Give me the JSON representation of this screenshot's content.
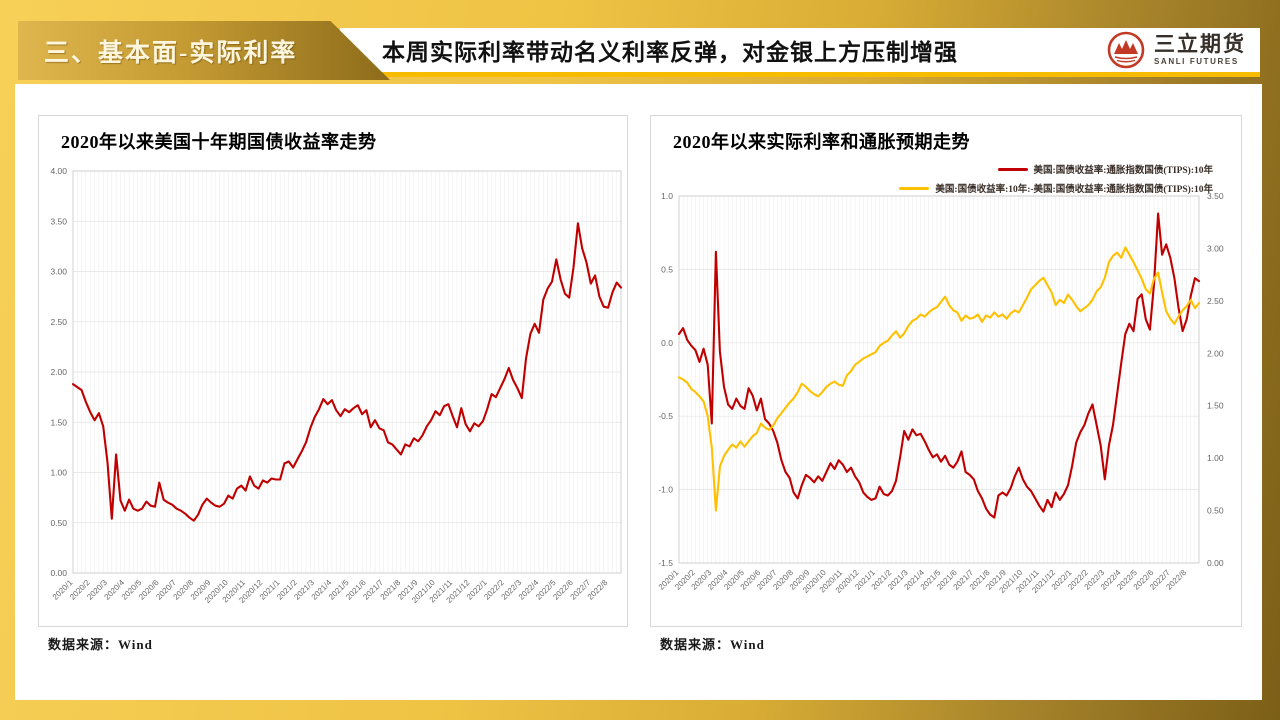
{
  "header": {
    "section_label": "三、基本面-实际利率",
    "headline": "本周实际利率带动名义利率反弹，对金银上方压制增强",
    "logo": {
      "name_cn": "三立期货",
      "name_en": "SANLI FUTURES",
      "brand_color": "#c23a26"
    }
  },
  "colors": {
    "accent_gold": "#f7bb00",
    "line_red": "#c00000",
    "line_gold": "#ffc000",
    "grid": "#ebebeb",
    "plot_border": "#c9c9c9",
    "tick_text": "#666666"
  },
  "chart_data": [
    {
      "type": "line",
      "title": "2020年以来美国十年期国债收益率走势",
      "source": "数据来源：Wind",
      "legend_position": "none",
      "grid": true,
      "xlabel": "",
      "ylabel": "",
      "y_axis": {
        "min": 0.0,
        "max": 4.0,
        "ticks": [
          "4.00",
          "3.50",
          "3.00",
          "2.50",
          "2.00",
          "1.50",
          "1.00",
          "0.50",
          "0.00"
        ]
      },
      "categories": [
        "2020/1",
        "2020/2",
        "2020/3",
        "2020/4",
        "2020/5",
        "2020/6",
        "2020/7",
        "2020/8",
        "2020/9",
        "2020/10",
        "2020/11",
        "2020/12",
        "2021/1",
        "2021/2",
        "2021/3",
        "2021/4",
        "2021/5",
        "2021/6",
        "2021/7",
        "2021/8",
        "2021/9",
        "2021/10",
        "2021/11",
        "2021/12",
        "2022/1",
        "2022/2",
        "2022/3",
        "2022/4",
        "2022/5",
        "2022/6",
        "2022/7",
        "2022/8"
      ],
      "points_per_month": 4,
      "series": [
        {
          "name": "美国:国债收益率:10年",
          "color": "#c00000",
          "axis": "left",
          "values": [
            1.88,
            1.85,
            1.82,
            1.7,
            1.6,
            1.52,
            1.59,
            1.46,
            1.1,
            0.54,
            1.18,
            0.72,
            0.62,
            0.73,
            0.64,
            0.62,
            0.64,
            0.71,
            0.67,
            0.66,
            0.9,
            0.73,
            0.7,
            0.68,
            0.64,
            0.62,
            0.59,
            0.55,
            0.52,
            0.58,
            0.68,
            0.74,
            0.7,
            0.67,
            0.66,
            0.69,
            0.77,
            0.74,
            0.84,
            0.87,
            0.82,
            0.96,
            0.87,
            0.84,
            0.92,
            0.9,
            0.94,
            0.93,
            0.93,
            1.09,
            1.11,
            1.05,
            1.13,
            1.21,
            1.3,
            1.44,
            1.55,
            1.63,
            1.73,
            1.68,
            1.72,
            1.62,
            1.56,
            1.63,
            1.6,
            1.64,
            1.67,
            1.58,
            1.62,
            1.45,
            1.52,
            1.44,
            1.42,
            1.3,
            1.28,
            1.23,
            1.18,
            1.28,
            1.26,
            1.34,
            1.31,
            1.37,
            1.46,
            1.52,
            1.61,
            1.57,
            1.66,
            1.68,
            1.56,
            1.45,
            1.64,
            1.48,
            1.41,
            1.49,
            1.46,
            1.51,
            1.63,
            1.78,
            1.75,
            1.84,
            1.93,
            2.04,
            1.92,
            1.84,
            1.74,
            2.14,
            2.38,
            2.48,
            2.39,
            2.72,
            2.83,
            2.9,
            3.12,
            2.92,
            2.78,
            2.74,
            3.04,
            3.48,
            3.23,
            3.09,
            2.88,
            2.96,
            2.75,
            2.65,
            2.64,
            2.79,
            2.89,
            2.84
          ]
        }
      ]
    },
    {
      "type": "line",
      "title": "2020年以来实际利率和通胀预期走势",
      "source": "数据来源：Wind",
      "legend_position": "top-right",
      "grid": true,
      "xlabel": "",
      "ylabel": "",
      "y_axis_left": {
        "min": -1.5,
        "max": 1.0,
        "ticks": [
          "1.0",
          "0.5",
          "0.0",
          "-0.5",
          "-1.0",
          "-1.5"
        ]
      },
      "y_axis_right": {
        "min": 0.0,
        "max": 3.5,
        "ticks": [
          "3.50",
          "3.00",
          "2.50",
          "2.00",
          "1.50",
          "1.00",
          "0.50",
          "0.00"
        ]
      },
      "categories": [
        "2020/1",
        "2020/2",
        "2020/3",
        "2020/4",
        "2020/5",
        "2020/6",
        "2020/7",
        "2020/8",
        "2020/9",
        "2020/10",
        "2020/11",
        "2020/12",
        "2021/1",
        "2021/2",
        "2021/3",
        "2021/4",
        "2021/5",
        "2021/6",
        "2021/7",
        "2021/8",
        "2021/9",
        "2021/10",
        "2021/11",
        "2021/12",
        "2022/1",
        "2022/2",
        "2022/3",
        "2022/4",
        "2022/5",
        "2022/6",
        "2022/7",
        "2022/8"
      ],
      "points_per_month": 4,
      "series": [
        {
          "name": "美国:国债收益率:通胀指数国债(TIPS):10年",
          "color": "#c00000",
          "axis": "left",
          "values": [
            0.06,
            0.1,
            0.02,
            -0.02,
            -0.05,
            -0.13,
            -0.04,
            -0.15,
            -0.55,
            0.62,
            -0.06,
            -0.3,
            -0.42,
            -0.45,
            -0.38,
            -0.43,
            -0.45,
            -0.31,
            -0.36,
            -0.46,
            -0.38,
            -0.52,
            -0.55,
            -0.6,
            -0.68,
            -0.8,
            -0.88,
            -0.92,
            -1.02,
            -1.06,
            -0.97,
            -0.9,
            -0.92,
            -0.95,
            -0.91,
            -0.94,
            -0.88,
            -0.82,
            -0.86,
            -0.8,
            -0.83,
            -0.88,
            -0.85,
            -0.91,
            -0.95,
            -1.02,
            -1.05,
            -1.07,
            -1.06,
            -0.98,
            -1.03,
            -1.04,
            -1.01,
            -0.94,
            -0.78,
            -0.6,
            -0.66,
            -0.59,
            -0.63,
            -0.62,
            -0.67,
            -0.73,
            -0.78,
            -0.76,
            -0.81,
            -0.77,
            -0.83,
            -0.85,
            -0.81,
            -0.74,
            -0.88,
            -0.9,
            -0.93,
            -1.01,
            -1.06,
            -1.13,
            -1.17,
            -1.19,
            -1.04,
            -1.02,
            -1.04,
            -0.99,
            -0.91,
            -0.85,
            -0.93,
            -0.98,
            -1.01,
            -1.06,
            -1.11,
            -1.15,
            -1.07,
            -1.12,
            -1.02,
            -1.07,
            -1.03,
            -0.97,
            -0.84,
            -0.68,
            -0.61,
            -0.56,
            -0.48,
            -0.42,
            -0.56,
            -0.7,
            -0.93,
            -0.7,
            -0.56,
            -0.35,
            -0.14,
            0.06,
            0.13,
            0.08,
            0.3,
            0.33,
            0.16,
            0.09,
            0.4,
            0.88,
            0.6,
            0.67,
            0.58,
            0.44,
            0.24,
            0.08,
            0.16,
            0.32,
            0.44,
            0.42
          ]
        },
        {
          "name": "美国:国债收益率:10年:-美国:国债收益率:通胀指数国债(TIPS):10年",
          "color": "#ffc000",
          "axis": "right",
          "values": [
            1.77,
            1.75,
            1.72,
            1.66,
            1.63,
            1.59,
            1.54,
            1.4,
            1.1,
            0.5,
            0.92,
            1.02,
            1.08,
            1.13,
            1.1,
            1.16,
            1.11,
            1.16,
            1.21,
            1.24,
            1.33,
            1.29,
            1.27,
            1.31,
            1.38,
            1.43,
            1.48,
            1.53,
            1.57,
            1.63,
            1.71,
            1.68,
            1.64,
            1.61,
            1.59,
            1.63,
            1.68,
            1.71,
            1.73,
            1.7,
            1.69,
            1.79,
            1.83,
            1.89,
            1.92,
            1.95,
            1.97,
            1.99,
            2.01,
            2.07,
            2.1,
            2.12,
            2.17,
            2.21,
            2.15,
            2.19,
            2.26,
            2.31,
            2.33,
            2.37,
            2.35,
            2.39,
            2.42,
            2.44,
            2.49,
            2.54,
            2.46,
            2.41,
            2.39,
            2.31,
            2.36,
            2.33,
            2.34,
            2.37,
            2.3,
            2.36,
            2.34,
            2.39,
            2.35,
            2.37,
            2.33,
            2.38,
            2.41,
            2.39,
            2.46,
            2.53,
            2.61,
            2.65,
            2.69,
            2.72,
            2.65,
            2.58,
            2.46,
            2.51,
            2.48,
            2.56,
            2.51,
            2.45,
            2.4,
            2.43,
            2.46,
            2.51,
            2.59,
            2.63,
            2.72,
            2.87,
            2.93,
            2.96,
            2.91,
            3.01,
            2.94,
            2.87,
            2.79,
            2.71,
            2.61,
            2.57,
            2.71,
            2.77,
            2.58,
            2.4,
            2.33,
            2.28,
            2.35,
            2.41,
            2.45,
            2.51,
            2.43,
            2.48
          ]
        }
      ]
    }
  ]
}
